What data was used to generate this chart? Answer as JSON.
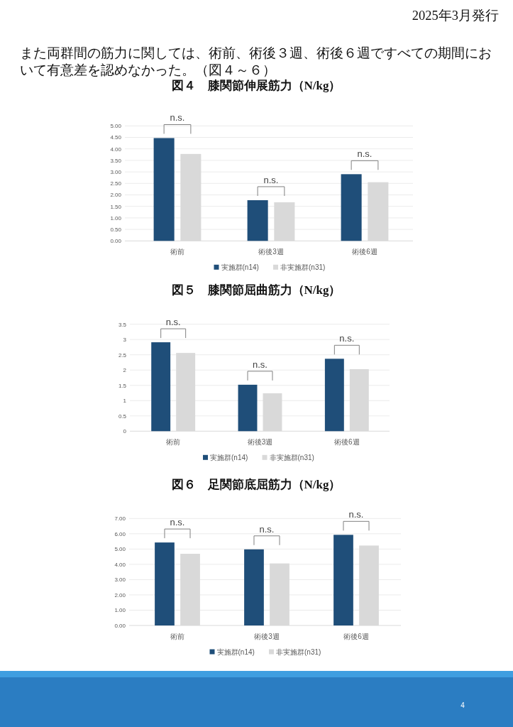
{
  "chart_data": [
    {
      "type": "bar",
      "title": "図４　膝関節伸展筋力（N/kg）",
      "annotations": [
        "2025年3月発行",
        "また両群間の筋力に関しては、術前、術後３週、術後６週ですべての期間において有意差を認めなかった。（図４～６）",
        "4",
        "n.s.",
        "n.s.",
        "n.s."
      ],
      "categories": [
        "術前",
        "術後3週",
        "術後6週"
      ],
      "series": [
        {
          "name": "実施群(n14)",
          "color": "#1f4e79",
          "values": [
            4.47,
            1.77,
            2.9
          ]
        },
        {
          "name": "非実施群(n31)",
          "color": "#d9d9d9",
          "values": [
            3.78,
            1.68,
            2.55
          ]
        }
      ],
      "ylim": [
        0,
        5
      ],
      "yticks": [
        {
          "value": 0,
          "label": "0.00"
        },
        {
          "value": 0.5,
          "label": "0.50"
        },
        {
          "value": 1,
          "label": "1.00"
        },
        {
          "value": 1.5,
          "label": "1.50"
        },
        {
          "value": 2,
          "label": "2.00"
        },
        {
          "value": 2.5,
          "label": "2.50"
        },
        {
          "value": 3,
          "label": "3.00"
        },
        {
          "value": 3.5,
          "label": "3.50"
        },
        {
          "value": 4,
          "label": "4.00"
        },
        {
          "value": 4.5,
          "label": "4.50"
        },
        {
          "value": 5,
          "label": "5.00"
        }
      ],
      "grid": "y",
      "legend": "bottom"
    },
    {
      "type": "bar",
      "title": "図５　膝関節屈曲筋力（N/kg）",
      "annotations": [
        "n.s.",
        "n.s.",
        "n.s."
      ],
      "categories": [
        "術前",
        "術後3週",
        "術後6週"
      ],
      "series": [
        {
          "name": "実施群(n14)",
          "color": "#1f4e79",
          "values": [
            2.91,
            1.52,
            2.37
          ]
        },
        {
          "name": "非実施群(n31)",
          "color": "#d9d9d9",
          "values": [
            2.56,
            1.24,
            2.03
          ]
        }
      ],
      "ylim": [
        0,
        3.5
      ],
      "yticks": [
        0,
        0.5,
        1,
        1.5,
        2,
        2.5,
        3,
        3.5
      ],
      "grid": "y",
      "legend": "bottom"
    },
    {
      "type": "bar",
      "title": "図６　足関節底屈筋力（N/kg）",
      "annotations": [
        "n.s.",
        "n.s.",
        "n.s."
      ],
      "categories": [
        "術前",
        "術後3週",
        "術後6週"
      ],
      "series": [
        {
          "name": "実施群(n14)",
          "color": "#1f4e79",
          "values": [
            5.43,
            4.98,
            5.93
          ]
        },
        {
          "name": "非実施群(n31)",
          "color": "#d9d9d9",
          "values": [
            4.69,
            4.06,
            5.23
          ]
        }
      ],
      "ylim": [
        0,
        7
      ],
      "yticks": [
        {
          "value": 0,
          "label": "0.00"
        },
        {
          "value": 1,
          "label": "1.00"
        },
        {
          "value": 2,
          "label": "2.00"
        },
        {
          "value": 3,
          "label": "3.00"
        },
        {
          "value": 4,
          "label": "4.00"
        },
        {
          "value": 5,
          "label": "5.00"
        },
        {
          "value": 6,
          "label": "6.00"
        },
        {
          "value": 7,
          "label": "7.00"
        }
      ],
      "grid": "y",
      "legend": "bottom"
    }
  ]
}
